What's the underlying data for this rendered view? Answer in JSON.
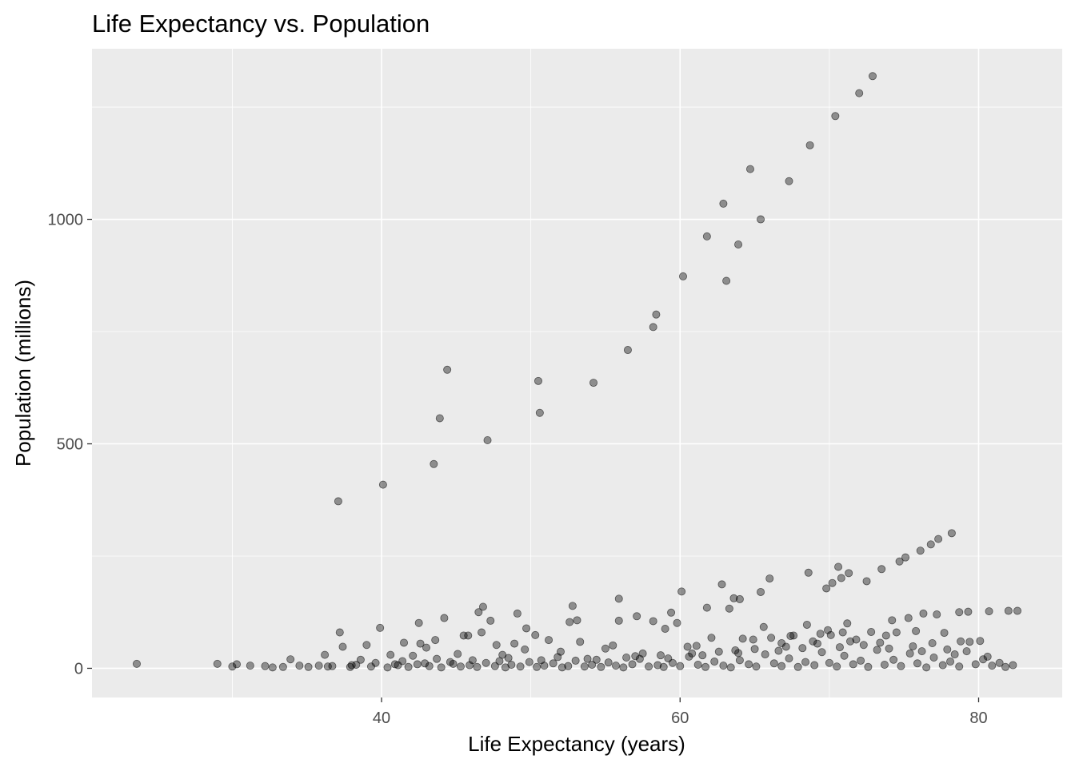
{
  "chart_data": {
    "type": "scatter",
    "title": "Life Expectancy vs. Population",
    "xlabel": "Life Expectancy (years)",
    "ylabel": "Population (millions)",
    "xlim": [
      20.6,
      85.6
    ],
    "ylim": [
      -65,
      1380
    ],
    "x_ticks": [
      40,
      60,
      80
    ],
    "x_tick_labels": [
      "40",
      "60",
      "80"
    ],
    "x_minor_ticks": [
      30,
      50,
      70
    ],
    "y_ticks": [
      0,
      500,
      1000
    ],
    "y_tick_labels": [
      "0",
      "500",
      "1000"
    ],
    "y_minor_ticks": [
      250,
      750,
      1250
    ],
    "grid": true,
    "legend": "none",
    "point_color": "#000000",
    "point_alpha": 0.4,
    "panel_color": "#ebebeb",
    "series": [
      {
        "points": [
          [
            72.9,
            1319
          ],
          [
            72.0,
            1281
          ],
          [
            70.4,
            1230
          ],
          [
            68.7,
            1165
          ],
          [
            67.3,
            1085
          ],
          [
            64.7,
            1112
          ],
          [
            62.9,
            1035
          ],
          [
            61.8,
            962
          ],
          [
            65.4,
            1000
          ],
          [
            63.9,
            944
          ],
          [
            63.1,
            863
          ],
          [
            60.2,
            873
          ],
          [
            58.4,
            788
          ],
          [
            58.2,
            760
          ],
          [
            56.5,
            709
          ],
          [
            54.2,
            636
          ],
          [
            50.5,
            640
          ],
          [
            50.6,
            569
          ],
          [
            44.4,
            665
          ],
          [
            43.9,
            557
          ],
          [
            43.5,
            455
          ],
          [
            47.1,
            508
          ],
          [
            40.1,
            409
          ],
          [
            37.1,
            372
          ],
          [
            78.2,
            301
          ],
          [
            77.3,
            288
          ],
          [
            76.8,
            276
          ],
          [
            76.1,
            262
          ],
          [
            75.1,
            247
          ],
          [
            74.7,
            238
          ],
          [
            73.5,
            221
          ],
          [
            72.5,
            194
          ],
          [
            71.3,
            212
          ],
          [
            70.8,
            201
          ],
          [
            70.6,
            226
          ],
          [
            70.2,
            190
          ],
          [
            69.8,
            178
          ],
          [
            68.6,
            213
          ],
          [
            66.0,
            200
          ],
          [
            65.4,
            170
          ],
          [
            64.0,
            154
          ],
          [
            63.6,
            156
          ],
          [
            62.8,
            187
          ],
          [
            63.3,
            133
          ],
          [
            61.8,
            135
          ],
          [
            60.1,
            171
          ],
          [
            59.4,
            124
          ],
          [
            57.1,
            116
          ],
          [
            55.9,
            155
          ],
          [
            53.1,
            107
          ],
          [
            52.8,
            139
          ],
          [
            49.1,
            122
          ],
          [
            46.8,
            137
          ],
          [
            46.5,
            125
          ],
          [
            47.3,
            106
          ],
          [
            44.2,
            112
          ],
          [
            42.5,
            101
          ],
          [
            39.9,
            90
          ],
          [
            37.2,
            80
          ],
          [
            36.2,
            30
          ],
          [
            23.6,
            10
          ],
          [
            29.0,
            10
          ],
          [
            30.0,
            4
          ],
          [
            30.3,
            9
          ],
          [
            31.2,
            6
          ],
          [
            32.2,
            5
          ],
          [
            33.9,
            20
          ],
          [
            80.7,
            127
          ],
          [
            82.0,
            128
          ],
          [
            82.6,
            128
          ],
          [
            79.3,
            126
          ],
          [
            78.7,
            125
          ],
          [
            76.3,
            122
          ],
          [
            77.2,
            120
          ],
          [
            75.3,
            112
          ],
          [
            74.2,
            107
          ],
          [
            71.2,
            100
          ],
          [
            69.9,
            85
          ],
          [
            68.5,
            97
          ],
          [
            67.6,
            73
          ],
          [
            66.1,
            68
          ],
          [
            65.6,
            92
          ],
          [
            64.9,
            64
          ],
          [
            64.2,
            66
          ],
          [
            62.1,
            68
          ],
          [
            59.8,
            101
          ],
          [
            59.0,
            88
          ],
          [
            58.2,
            105
          ],
          [
            55.9,
            106
          ],
          [
            55.5,
            51
          ],
          [
            53.3,
            59
          ],
          [
            52.6,
            103
          ],
          [
            51.2,
            63
          ],
          [
            50.3,
            74
          ],
          [
            49.7,
            89
          ],
          [
            48.9,
            55
          ],
          [
            47.7,
            52
          ],
          [
            46.7,
            80
          ],
          [
            45.8,
            73
          ],
          [
            45.5,
            73
          ],
          [
            43.6,
            63
          ],
          [
            43.0,
            46
          ],
          [
            42.6,
            55
          ],
          [
            41.5,
            57
          ],
          [
            39.0,
            52
          ],
          [
            37.4,
            48
          ],
          [
            80.1,
            61
          ],
          [
            79.4,
            59
          ],
          [
            78.8,
            60
          ],
          [
            77.7,
            79
          ],
          [
            76.9,
            56
          ],
          [
            75.8,
            83
          ],
          [
            74.5,
            80
          ],
          [
            73.8,
            73
          ],
          [
            72.8,
            81
          ],
          [
            71.8,
            64
          ],
          [
            70.9,
            80
          ],
          [
            70.1,
            74
          ],
          [
            69.4,
            77
          ],
          [
            68.9,
            60
          ],
          [
            67.4,
            72
          ],
          [
            66.8,
            56
          ],
          [
            63.7,
            40
          ],
          [
            61.1,
            50
          ],
          [
            60.5,
            48
          ],
          [
            57.5,
            33
          ],
          [
            55.0,
            44
          ],
          [
            52.0,
            37
          ],
          [
            49.6,
            42
          ],
          [
            48.1,
            30
          ],
          [
            45.1,
            32
          ],
          [
            42.1,
            28
          ],
          [
            40.6,
            30
          ],
          [
            38.6,
            19
          ],
          [
            34.5,
            6
          ],
          [
            35.1,
            3
          ],
          [
            35.8,
            6
          ],
          [
            36.7,
            5
          ],
          [
            37.9,
            3
          ],
          [
            38.3,
            8
          ],
          [
            39.3,
            4
          ],
          [
            40.4,
            2
          ],
          [
            41.1,
            7
          ],
          [
            41.8,
            3
          ],
          [
            42.4,
            9
          ],
          [
            43.2,
            5
          ],
          [
            44.0,
            2
          ],
          [
            44.8,
            10
          ],
          [
            45.3,
            4
          ],
          [
            45.9,
            7
          ],
          [
            46.4,
            3
          ],
          [
            47.0,
            12
          ],
          [
            47.6,
            5
          ],
          [
            48.3,
            2
          ],
          [
            48.7,
            8
          ],
          [
            49.3,
            4
          ],
          [
            49.9,
            14
          ],
          [
            50.4,
            3
          ],
          [
            50.9,
            6
          ],
          [
            51.5,
            11
          ],
          [
            52.1,
            2
          ],
          [
            52.5,
            5
          ],
          [
            53.0,
            17
          ],
          [
            53.6,
            4
          ],
          [
            54.1,
            8
          ],
          [
            54.7,
            3
          ],
          [
            55.2,
            13
          ],
          [
            55.7,
            6
          ],
          [
            56.2,
            2
          ],
          [
            56.8,
            9
          ],
          [
            57.3,
            21
          ],
          [
            57.9,
            4
          ],
          [
            58.5,
            7
          ],
          [
            58.9,
            3
          ],
          [
            59.5,
            12
          ],
          [
            60.0,
            5
          ],
          [
            60.6,
            26
          ],
          [
            61.2,
            8
          ],
          [
            61.7,
            3
          ],
          [
            62.3,
            15
          ],
          [
            62.9,
            6
          ],
          [
            63.4,
            2
          ],
          [
            64.0,
            18
          ],
          [
            64.6,
            9
          ],
          [
            65.1,
            4
          ],
          [
            65.7,
            31
          ],
          [
            66.3,
            11
          ],
          [
            66.8,
            5
          ],
          [
            67.3,
            22
          ],
          [
            67.9,
            3
          ],
          [
            68.4,
            14
          ],
          [
            69.0,
            7
          ],
          [
            69.5,
            36
          ],
          [
            70.0,
            12
          ],
          [
            70.5,
            4
          ],
          [
            71.0,
            28
          ],
          [
            71.6,
            9
          ],
          [
            72.1,
            17
          ],
          [
            72.6,
            3
          ],
          [
            73.2,
            41
          ],
          [
            73.7,
            8
          ],
          [
            74.3,
            19
          ],
          [
            74.8,
            5
          ],
          [
            75.4,
            33
          ],
          [
            75.9,
            11
          ],
          [
            76.5,
            2
          ],
          [
            77.0,
            24
          ],
          [
            77.6,
            7
          ],
          [
            78.1,
            15
          ],
          [
            78.7,
            4
          ],
          [
            79.2,
            38
          ],
          [
            79.8,
            9
          ],
          [
            80.3,
            20
          ],
          [
            80.9,
            6
          ],
          [
            81.4,
            12
          ],
          [
            81.8,
            3
          ],
          [
            82.3,
            7
          ],
          [
            39.6,
            12
          ],
          [
            41.4,
            16
          ],
          [
            43.7,
            21
          ],
          [
            46.1,
            18
          ],
          [
            48.5,
            23
          ],
          [
            51.8,
            25
          ],
          [
            54.4,
            19
          ],
          [
            57.0,
            27
          ],
          [
            59.2,
            22
          ],
          [
            61.5,
            29
          ],
          [
            63.9,
            34
          ],
          [
            66.6,
            39
          ],
          [
            68.2,
            45
          ],
          [
            70.7,
            47
          ],
          [
            72.3,
            52
          ],
          [
            74.0,
            44
          ],
          [
            76.2,
            38
          ],
          [
            78.4,
            31
          ],
          [
            80.6,
            26
          ],
          [
            69.2,
            55
          ],
          [
            71.4,
            60
          ],
          [
            73.4,
            57
          ],
          [
            75.6,
            49
          ],
          [
            77.9,
            42
          ],
          [
            67.1,
            48
          ],
          [
            65.0,
            43
          ],
          [
            62.6,
            37
          ],
          [
            60.8,
            33
          ],
          [
            58.7,
            29
          ],
          [
            56.4,
            24
          ],
          [
            53.8,
            21
          ],
          [
            50.7,
            18
          ],
          [
            47.9,
            16
          ],
          [
            44.6,
            14
          ],
          [
            42.9,
            11
          ],
          [
            40.9,
            9
          ],
          [
            38.0,
            7
          ],
          [
            36.4,
            4
          ],
          [
            33.4,
            3
          ],
          [
            32.7,
            2
          ]
        ]
      }
    ]
  }
}
